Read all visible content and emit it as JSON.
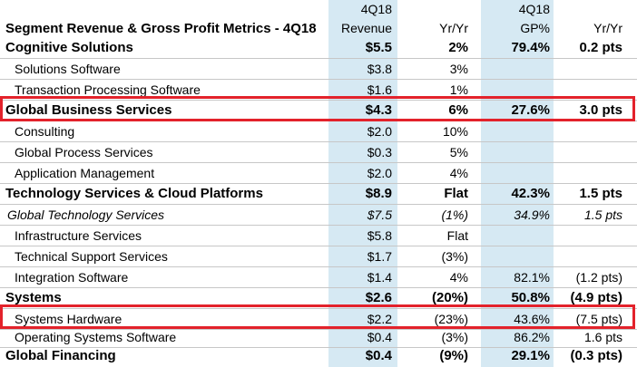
{
  "header": {
    "title": "Segment Revenue & Gross Profit Metrics - 4Q18",
    "col_rev_top": "4Q18",
    "col_rev_bottom": "Revenue",
    "col_yy1": "Yr/Yr",
    "col_gp_top": "4Q18",
    "col_gp_bottom": "GP%",
    "col_yy2": "Yr/Yr"
  },
  "rows": [
    {
      "label": "Cognitive Solutions",
      "rev": "$5.5",
      "yy1": "2%",
      "gp": "79.4%",
      "yy2": "0.2 pts"
    },
    {
      "label": "Solutions Software",
      "rev": "$3.8",
      "yy1": "3%",
      "gp": "",
      "yy2": ""
    },
    {
      "label": "Transaction Processing Software",
      "rev": "$1.6",
      "yy1": "1%",
      "gp": "",
      "yy2": ""
    },
    {
      "label": "Global Business Services",
      "rev": "$4.3",
      "yy1": "6%",
      "gp": "27.6%",
      "yy2": "3.0 pts"
    },
    {
      "label": "Consulting",
      "rev": "$2.0",
      "yy1": "10%",
      "gp": "",
      "yy2": ""
    },
    {
      "label": "Global Process Services",
      "rev": "$0.3",
      "yy1": "5%",
      "gp": "",
      "yy2": ""
    },
    {
      "label": "Application Management",
      "rev": "$2.0",
      "yy1": "4%",
      "gp": "",
      "yy2": ""
    },
    {
      "label": "Technology Services & Cloud Platforms",
      "rev": "$8.9",
      "yy1": "Flat",
      "gp": "42.3%",
      "yy2": "1.5 pts"
    },
    {
      "label": "Global Technology Services",
      "rev": "$7.5",
      "yy1": "(1%)",
      "gp": "34.9%",
      "yy2": "1.5 pts"
    },
    {
      "label": "Infrastructure Services",
      "rev": "$5.8",
      "yy1": "Flat",
      "gp": "",
      "yy2": ""
    },
    {
      "label": "Technical Support Services",
      "rev": "$1.7",
      "yy1": "(3%)",
      "gp": "",
      "yy2": ""
    },
    {
      "label": "Integration Software",
      "rev": "$1.4",
      "yy1": "4%",
      "gp": "82.1%",
      "yy2": "(1.2 pts)"
    },
    {
      "label": "Systems",
      "rev": "$2.6",
      "yy1": "(20%)",
      "gp": "50.8%",
      "yy2": "(4.9 pts)"
    },
    {
      "label": "Systems Hardware",
      "rev": "$2.2",
      "yy1": "(23%)",
      "gp": "43.6%",
      "yy2": "(7.5 pts)"
    },
    {
      "label": "Operating Systems Software",
      "rev": "$0.4",
      "yy1": "(3%)",
      "gp": "86.2%",
      "yy2": "1.6 pts"
    },
    {
      "label": "Global Financing",
      "rev": "$0.4",
      "yy1": "(9%)",
      "gp": "29.1%",
      "yy2": "(0.3 pts)"
    }
  ],
  "colors": {
    "band": "#d6e9f3",
    "highlight": "#e3222b"
  }
}
